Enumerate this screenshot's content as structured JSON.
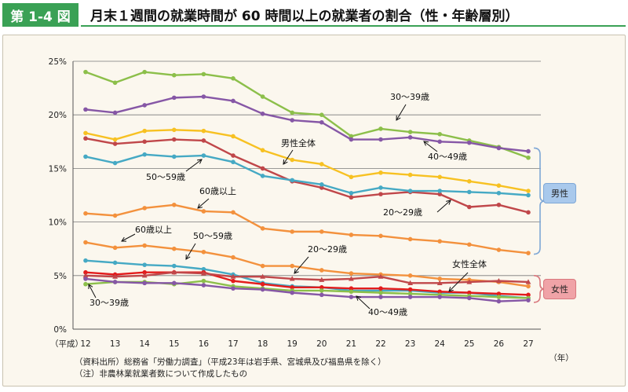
{
  "header": {
    "fig_label": "第 1-4 図",
    "title": "月末１週間の就業時間が 60 時間以上の就業者の割合（性・年齢層別）"
  },
  "axes": {
    "x_prefix": "（平成）",
    "x_unit": "（年）",
    "y_ticks": [
      "0%",
      "5%",
      "10%",
      "15%",
      "20%",
      "25%"
    ]
  },
  "chart_data": {
    "type": "line",
    "x": [
      12,
      13,
      14,
      15,
      16,
      17,
      18,
      19,
      20,
      21,
      22,
      23,
      24,
      25,
      26,
      27
    ],
    "ylim": [
      0,
      25
    ],
    "y_unit": "%",
    "grid": true,
    "series": [
      {
        "name": "30〜39歳",
        "group": "男性",
        "color": "#8cbf4a",
        "marker": "circle",
        "values": [
          24.0,
          23.0,
          24.0,
          23.7,
          23.8,
          23.4,
          21.7,
          20.2,
          20.0,
          18.0,
          18.7,
          18.4,
          18.2,
          17.6,
          17.0,
          16.0
        ]
      },
      {
        "name": "40〜49歳",
        "group": "男性",
        "color": "#8657a6",
        "marker": "circle",
        "values": [
          20.5,
          20.2,
          20.9,
          21.6,
          21.7,
          21.3,
          20.1,
          19.5,
          19.3,
          17.7,
          17.7,
          17.9,
          17.5,
          17.4,
          16.9,
          16.6
        ]
      },
      {
        "name": "男性全体",
        "group": "男性",
        "color": "#f7c122",
        "marker": "circle",
        "values": [
          18.3,
          17.7,
          18.5,
          18.6,
          18.5,
          18.0,
          16.7,
          15.8,
          15.4,
          14.2,
          14.6,
          14.4,
          14.2,
          13.8,
          13.4,
          12.9
        ]
      },
      {
        "name": "20〜29歳",
        "group": "男性",
        "color": "#c0474a",
        "marker": "circle",
        "values": [
          17.8,
          17.3,
          17.5,
          17.7,
          17.6,
          16.2,
          15.0,
          13.8,
          13.2,
          12.3,
          12.6,
          12.8,
          12.6,
          11.4,
          11.6,
          10.9
        ]
      },
      {
        "name": "50〜59歳",
        "group": "男性",
        "color": "#45a9c4",
        "marker": "circle",
        "values": [
          16.1,
          15.5,
          16.3,
          16.1,
          16.2,
          15.6,
          14.3,
          13.9,
          13.5,
          12.7,
          13.2,
          12.9,
          12.9,
          12.8,
          12.7,
          12.5
        ]
      },
      {
        "name": "60歳以上",
        "group": "男性",
        "color": "#f3913d",
        "marker": "circle",
        "values": [
          10.8,
          10.6,
          11.3,
          11.6,
          11.0,
          10.9,
          9.4,
          9.1,
          9.1,
          8.8,
          8.7,
          8.4,
          8.2,
          7.9,
          7.4,
          7.1
        ]
      },
      {
        "name": "60歳以上",
        "group": "女性",
        "color": "#f3913d",
        "marker": "circle",
        "values": [
          8.1,
          7.6,
          7.8,
          7.5,
          7.2,
          6.7,
          5.9,
          5.9,
          5.5,
          5.2,
          5.1,
          5.0,
          4.7,
          4.6,
          4.4,
          4.0
        ]
      },
      {
        "name": "50〜59歳",
        "group": "女性",
        "color": "#45a9c4",
        "marker": "circle",
        "values": [
          6.4,
          6.2,
          6.0,
          5.9,
          5.6,
          5.1,
          4.3,
          4.0,
          3.9,
          3.6,
          3.6,
          3.6,
          3.4,
          3.4,
          3.1,
          2.9
        ]
      },
      {
        "name": "女性全体",
        "group": "女性",
        "color": "#e31c1c",
        "marker": "circle",
        "values": [
          5.3,
          5.1,
          5.3,
          5.3,
          5.3,
          4.5,
          4.2,
          3.9,
          3.9,
          3.8,
          3.8,
          3.7,
          3.5,
          3.4,
          3.3,
          3.2
        ]
      },
      {
        "name": "20〜29歳",
        "group": "女性",
        "color": "#c0474a",
        "marker": "triangle",
        "values": [
          5.0,
          4.9,
          5.0,
          5.3,
          5.2,
          4.9,
          4.9,
          4.7,
          4.6,
          4.7,
          4.9,
          4.3,
          4.3,
          4.4,
          4.5,
          4.4
        ]
      },
      {
        "name": "30〜39歳",
        "group": "女性",
        "color": "#8cbf4a",
        "marker": "circle",
        "values": [
          4.2,
          4.4,
          4.4,
          4.2,
          4.5,
          4.0,
          3.8,
          3.6,
          3.6,
          3.5,
          3.4,
          3.3,
          3.2,
          3.1,
          3.0,
          2.9
        ]
      },
      {
        "name": "40〜49歳",
        "group": "女性",
        "color": "#8657a6",
        "marker": "circle",
        "values": [
          4.7,
          4.4,
          4.3,
          4.3,
          4.1,
          3.8,
          3.7,
          3.4,
          3.2,
          3.0,
          3.0,
          3.0,
          3.0,
          2.9,
          2.6,
          2.7
        ]
      }
    ],
    "annotations": [
      "30〜39歳",
      "40〜49歳",
      "男性全体",
      "50〜59歳",
      "60歳以上",
      "20〜29歳",
      "60歳以上",
      "50〜59歳",
      "20〜29歳",
      "女性全体",
      "30〜39歳",
      "40〜49歳"
    ],
    "group_labels": {
      "male": "男性",
      "female": "女性"
    }
  },
  "notes": {
    "source": "（資料出所）総務省「労働力調査」（平成23年は岩手県、宮城県及び福島県を除く）",
    "note": "（注）非農林業就業者数について作成したもの"
  },
  "colors": {
    "accent": "#3aa155",
    "panel_bg": "#fbf7ee",
    "male_box": "#a9c9ec",
    "female_box": "#f0a3a7"
  }
}
